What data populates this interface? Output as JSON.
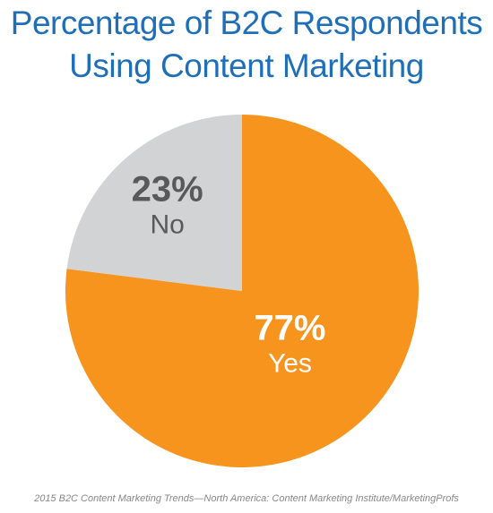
{
  "title": {
    "line1": "Percentage of B2C Respondents",
    "line2": "Using Content Marketing"
  },
  "chart_data": {
    "type": "pie",
    "slices": [
      {
        "label": "Yes",
        "value": 77,
        "value_label": "77%",
        "color": "#f7941e",
        "text_color": "#ffffff"
      },
      {
        "label": "No",
        "value": 23,
        "value_label": "23%",
        "color": "#d1d3d4",
        "text_color": "#58595b"
      }
    ],
    "start": "12 o'clock, clockwise",
    "legend": "none"
  },
  "source": "2015 B2C Content Marketing Trends—North America: Content Marketing Institute/MarketingProfs"
}
